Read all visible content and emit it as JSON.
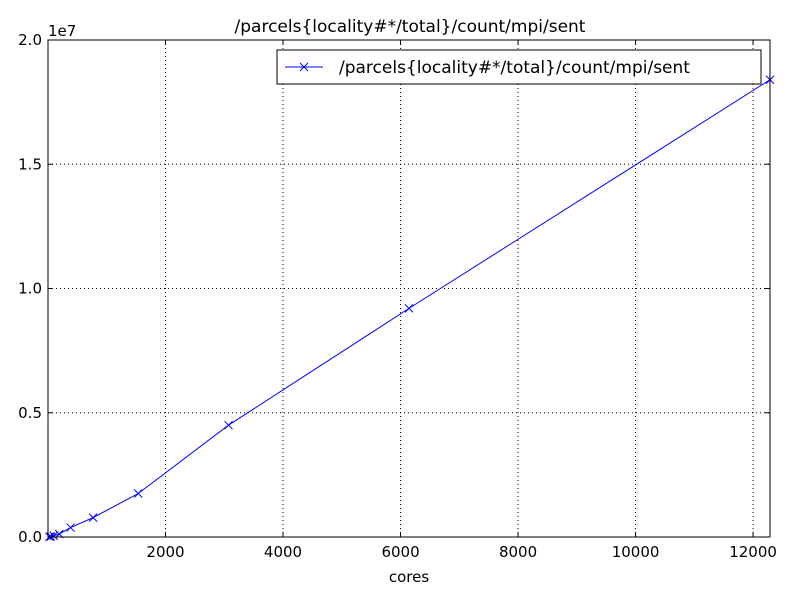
{
  "chart_data": {
    "type": "line",
    "title": "/parcels{locality#*/total}/count/mpi/sent",
    "xlabel": "cores",
    "ylabel": "",
    "y_offset_label": "1e7",
    "xlim": [
      0,
      12288
    ],
    "ylim": [
      0,
      20000000
    ],
    "xticks": [
      2000,
      4000,
      6000,
      8000,
      10000,
      12000
    ],
    "xtick_labels": [
      "2000",
      "4000",
      "6000",
      "8000",
      "10000",
      "12000"
    ],
    "yticks": [
      0,
      5000000,
      10000000,
      15000000,
      20000000
    ],
    "ytick_labels": [
      "0.0",
      "0.5",
      "1.0",
      "1.5",
      "2.0"
    ],
    "grid": true,
    "legend_position": "top-right",
    "series": [
      {
        "name": "/parcels{locality#*/total}/count/mpi/sent",
        "color": "#0000ff",
        "marker": "x",
        "x": [
          24,
          48,
          96,
          192,
          384,
          768,
          1536,
          3072,
          6144,
          12288
        ],
        "y": [
          10000,
          20000,
          50000,
          120000,
          380000,
          780000,
          1750000,
          4500000,
          9200000,
          18400000
        ]
      }
    ]
  }
}
